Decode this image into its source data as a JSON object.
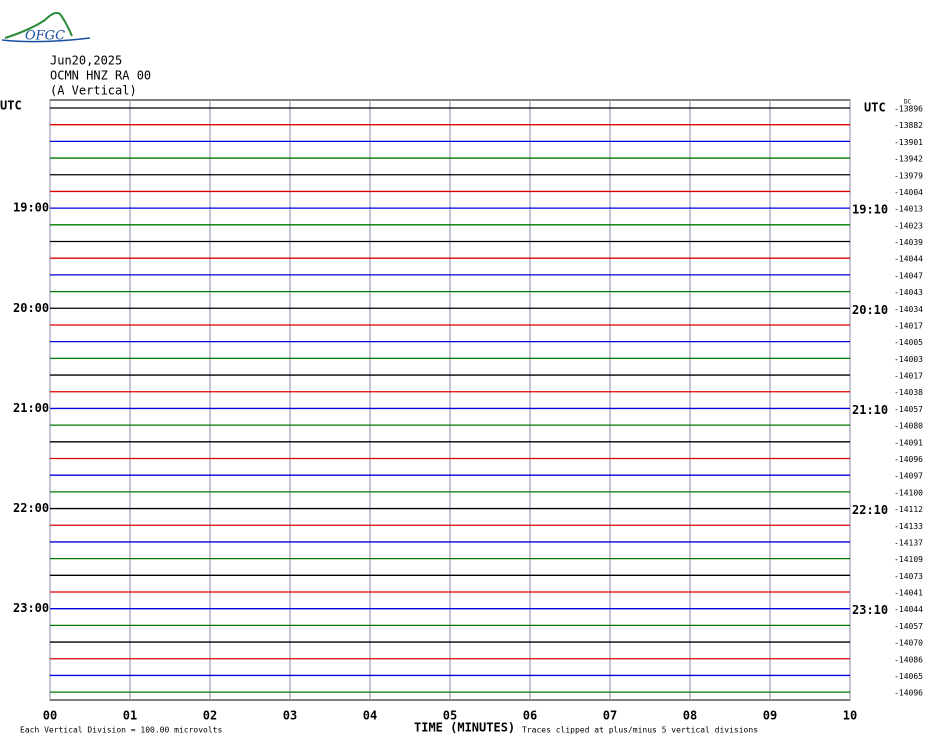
{
  "logo": "OFGC",
  "header": {
    "date": "Jun20,2025",
    "station": "OCMN HNZ RA 00",
    "component": "(A Vertical)"
  },
  "dc_label": "DC",
  "left_labels": [
    "UTC",
    "19:00",
    "20:00",
    "21:00",
    "22:00",
    "23:00"
  ],
  "right_labels": [
    "UTC",
    "19:10",
    "20:10",
    "21:10",
    "22:10",
    "23:10"
  ],
  "trace_offsets": [
    -13896,
    -13882,
    -13901,
    -13942,
    -13979,
    -14004,
    -14013,
    -14023,
    -14039,
    -14044,
    -14047,
    -14043,
    -14034,
    -14017,
    -14005,
    -14003,
    -14017,
    -14038,
    -14057,
    -14080,
    -14091,
    -14096,
    -14097,
    -14100,
    -14112,
    -14133,
    -14137,
    -14109,
    -14073,
    -14041,
    -14044,
    -14057,
    -14070,
    -14086,
    -14065,
    -14096
  ],
  "x_ticks": [
    "00",
    "01",
    "02",
    "03",
    "04",
    "05",
    "06",
    "07",
    "08",
    "09",
    "10"
  ],
  "x_axis_label": "TIME (MINUTES)",
  "footer_left": "Each Vertical Division =  100.00 microvolts",
  "footer_right": "Traces clipped at plus/minus 5 vertical divisions",
  "trace_colors": [
    "#000000",
    "#dd0000",
    "#0000dd",
    "#007700"
  ]
}
